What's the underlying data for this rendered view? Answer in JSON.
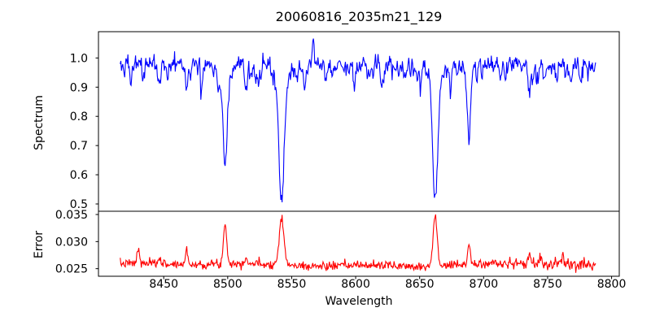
{
  "chart_data": {
    "type": "line",
    "title": "20060816_2035m21_129",
    "xlabel": "Wavelength",
    "xlim": [
      8399,
      8806
    ],
    "xticks": [
      8450,
      8500,
      8550,
      8600,
      8650,
      8700,
      8750,
      8800
    ],
    "xtick_labels": [
      "8450",
      "8500",
      "8550",
      "8600",
      "8650",
      "8700",
      "8750",
      "8800"
    ],
    "x_start": 8416,
    "x_end": 8787.5,
    "step": 0.5,
    "subplots": [
      {
        "name": "spectrum",
        "ylabel": "Spectrum",
        "color": "#0000ff",
        "ylim": [
          0.475,
          1.09
        ],
        "yticks": [
          1.0,
          0.9,
          0.8,
          0.7,
          0.6,
          0.5
        ],
        "ytick_labels": [
          "1.0",
          "0.9",
          "0.8",
          "0.7",
          "0.6",
          "0.5"
        ],
        "continuum": 0.981,
        "noise_sigma": 0.014,
        "seed": 42,
        "micro_line_count": 110,
        "absorption_lines": [
          {
            "center": 8498.0,
            "depth": 0.31,
            "sigma": 1.7,
            "wing_depth": 0.035,
            "wing_sigma": 5
          },
          {
            "center": 8542.1,
            "depth": 0.42,
            "sigma": 2.0,
            "wing_depth": 0.055,
            "wing_sigma": 6
          },
          {
            "center": 8662.1,
            "depth": 0.415,
            "sigma": 1.9,
            "wing_depth": 0.055,
            "wing_sigma": 6
          },
          {
            "center": 8688.6,
            "depth": 0.26,
            "sigma": 1.3,
            "wing_depth": 0,
            "wing_sigma": 1
          },
          {
            "center": 8424.0,
            "depth": 0.045,
            "sigma": 0.8,
            "wing_depth": 0,
            "wing_sigma": 1
          },
          {
            "center": 8434.0,
            "depth": 0.04,
            "sigma": 0.7,
            "wing_depth": 0,
            "wing_sigma": 1
          },
          {
            "center": 8447.0,
            "depth": 0.08,
            "sigma": 0.9,
            "wing_depth": 0,
            "wing_sigma": 1
          },
          {
            "center": 8468.0,
            "depth": 0.1,
            "sigma": 1.0,
            "wing_depth": 0,
            "wing_sigma": 1
          },
          {
            "center": 8480.0,
            "depth": 0.035,
            "sigma": 0.7,
            "wing_depth": 0,
            "wing_sigma": 1
          },
          {
            "center": 8514.0,
            "depth": 0.07,
            "sigma": 0.9,
            "wing_depth": 0,
            "wing_sigma": 1
          },
          {
            "center": 8524.0,
            "depth": 0.05,
            "sigma": 0.8,
            "wing_depth": 0,
            "wing_sigma": 1
          },
          {
            "center": 8554.0,
            "depth": 0.05,
            "sigma": 0.8,
            "wing_depth": 0,
            "wing_sigma": 1
          },
          {
            "center": 8560.0,
            "depth": 0.04,
            "sigma": 0.7,
            "wing_depth": 0,
            "wing_sigma": 1
          },
          {
            "center": 8582.0,
            "depth": 0.045,
            "sigma": 0.8,
            "wing_depth": 0,
            "wing_sigma": 1
          },
          {
            "center": 8599.0,
            "depth": 0.055,
            "sigma": 0.9,
            "wing_depth": 0,
            "wing_sigma": 1
          },
          {
            "center": 8611.0,
            "depth": 0.045,
            "sigma": 0.8,
            "wing_depth": 0,
            "wing_sigma": 1
          },
          {
            "center": 8621.0,
            "depth": 0.06,
            "sigma": 0.9,
            "wing_depth": 0,
            "wing_sigma": 1
          },
          {
            "center": 8634.0,
            "depth": 0.04,
            "sigma": 0.7,
            "wing_depth": 0,
            "wing_sigma": 1
          },
          {
            "center": 8648.0,
            "depth": 0.055,
            "sigma": 0.9,
            "wing_depth": 0,
            "wing_sigma": 1
          },
          {
            "center": 8674.0,
            "depth": 0.05,
            "sigma": 0.8,
            "wing_depth": 0,
            "wing_sigma": 1
          },
          {
            "center": 8679.0,
            "depth": 0.04,
            "sigma": 0.7,
            "wing_depth": 0,
            "wing_sigma": 1
          },
          {
            "center": 8713.0,
            "depth": 0.055,
            "sigma": 0.9,
            "wing_depth": 0,
            "wing_sigma": 1
          },
          {
            "center": 8736.0,
            "depth": 0.09,
            "sigma": 1.0,
            "wing_depth": 0,
            "wing_sigma": 1
          },
          {
            "center": 8747.0,
            "depth": 0.04,
            "sigma": 0.7,
            "wing_depth": 0,
            "wing_sigma": 1
          },
          {
            "center": 8757.0,
            "depth": 0.045,
            "sigma": 0.8,
            "wing_depth": 0,
            "wing_sigma": 1
          },
          {
            "center": 8768.0,
            "depth": 0.06,
            "sigma": 0.9,
            "wing_depth": 0,
            "wing_sigma": 1
          },
          {
            "center": 8776.0,
            "depth": 0.045,
            "sigma": 0.8,
            "wing_depth": 0,
            "wing_sigma": 1
          }
        ],
        "emission_spikes": [
          {
            "center": 8567.0,
            "amp": 0.09,
            "sigma": 0.6
          }
        ]
      },
      {
        "name": "error",
        "ylabel": "Error",
        "color": "#ff0000",
        "ylim": [
          0.0236,
          0.0356
        ],
        "yticks": [
          0.035,
          0.03,
          0.025
        ],
        "ytick_labels": [
          "0.035",
          "0.030",
          "0.025"
        ],
        "baseline": 0.0257,
        "noise_sigma": 0.0004,
        "seed": 7,
        "edge_noise_boost": {
          "from": 8700,
          "factor": 1.6
        },
        "peaks": [
          {
            "center": 8498.0,
            "amp": 0.0074,
            "sigma": 1.3
          },
          {
            "center": 8542.1,
            "amp": 0.009,
            "sigma": 1.8
          },
          {
            "center": 8662.1,
            "amp": 0.0088,
            "sigma": 1.7
          },
          {
            "center": 8688.6,
            "amp": 0.004,
            "sigma": 0.9
          },
          {
            "center": 8430.0,
            "amp": 0.0027,
            "sigma": 0.9
          },
          {
            "center": 8468.0,
            "amp": 0.0027,
            "sigma": 1.0
          },
          {
            "center": 8447.0,
            "amp": 0.0013,
            "sigma": 0.9
          },
          {
            "center": 8514.0,
            "amp": 0.0012,
            "sigma": 1.0
          },
          {
            "center": 8736.0,
            "amp": 0.0016,
            "sigma": 1.2
          },
          {
            "center": 8745.0,
            "amp": 0.0012,
            "sigma": 0.9
          },
          {
            "center": 8762.0,
            "amp": 0.0014,
            "sigma": 0.9
          },
          {
            "center": 8771.0,
            "amp": 0.0012,
            "sigma": 0.8
          }
        ]
      }
    ]
  }
}
